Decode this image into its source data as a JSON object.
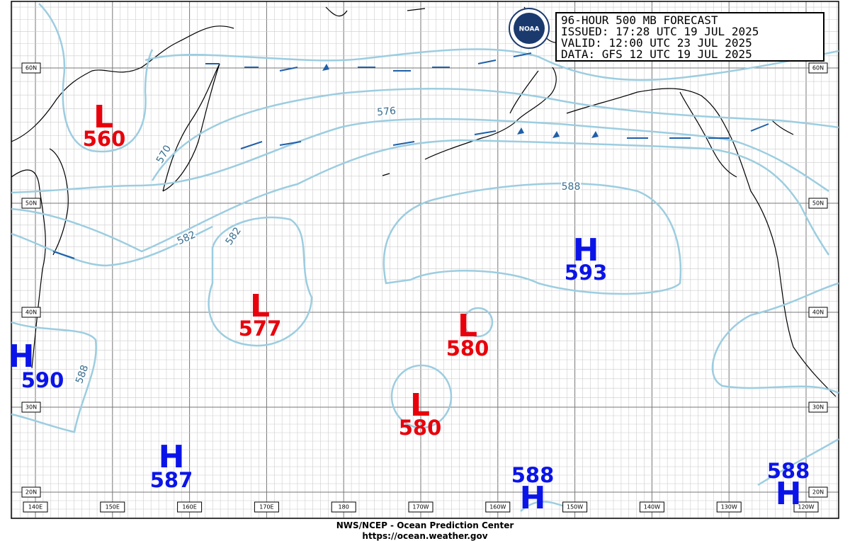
{
  "header": {
    "lines": [
      "96-HOUR 500 MB FORECAST",
      "ISSUED: 17:28 UTC 19 JUL 2025",
      "VALID:  12:00 UTC 23 JUL 2025",
      "DATA:  GFS 12 UTC 19 JUL 2025"
    ],
    "logo": "NOAA"
  },
  "centers": [
    {
      "letter": "L",
      "value": 560
    },
    {
      "letter": "L",
      "value": 577
    },
    {
      "letter": "L",
      "value": 580
    },
    {
      "letter": "L",
      "value": 580
    },
    {
      "letter": "H",
      "value": 593
    },
    {
      "letter": "H",
      "value": 590
    },
    {
      "letter": "H",
      "value": 587
    },
    {
      "letter": "H",
      "value": 588
    },
    {
      "letter": "H",
      "value": 588
    }
  ],
  "contour_labels": [
    "576",
    "570",
    "582",
    "582",
    "588",
    "588"
  ],
  "latitudes": [
    "60N",
    "50N",
    "40N",
    "30N",
    "20N"
  ],
  "longitudes": [
    "140E",
    "150E",
    "160E",
    "170E",
    "180",
    "170W",
    "160W",
    "150W",
    "140W",
    "130W",
    "120W"
  ],
  "footer": {
    "line1": "NWS/NCEP - Ocean Prediction Center",
    "line2": "https://ocean.weather.gov"
  }
}
